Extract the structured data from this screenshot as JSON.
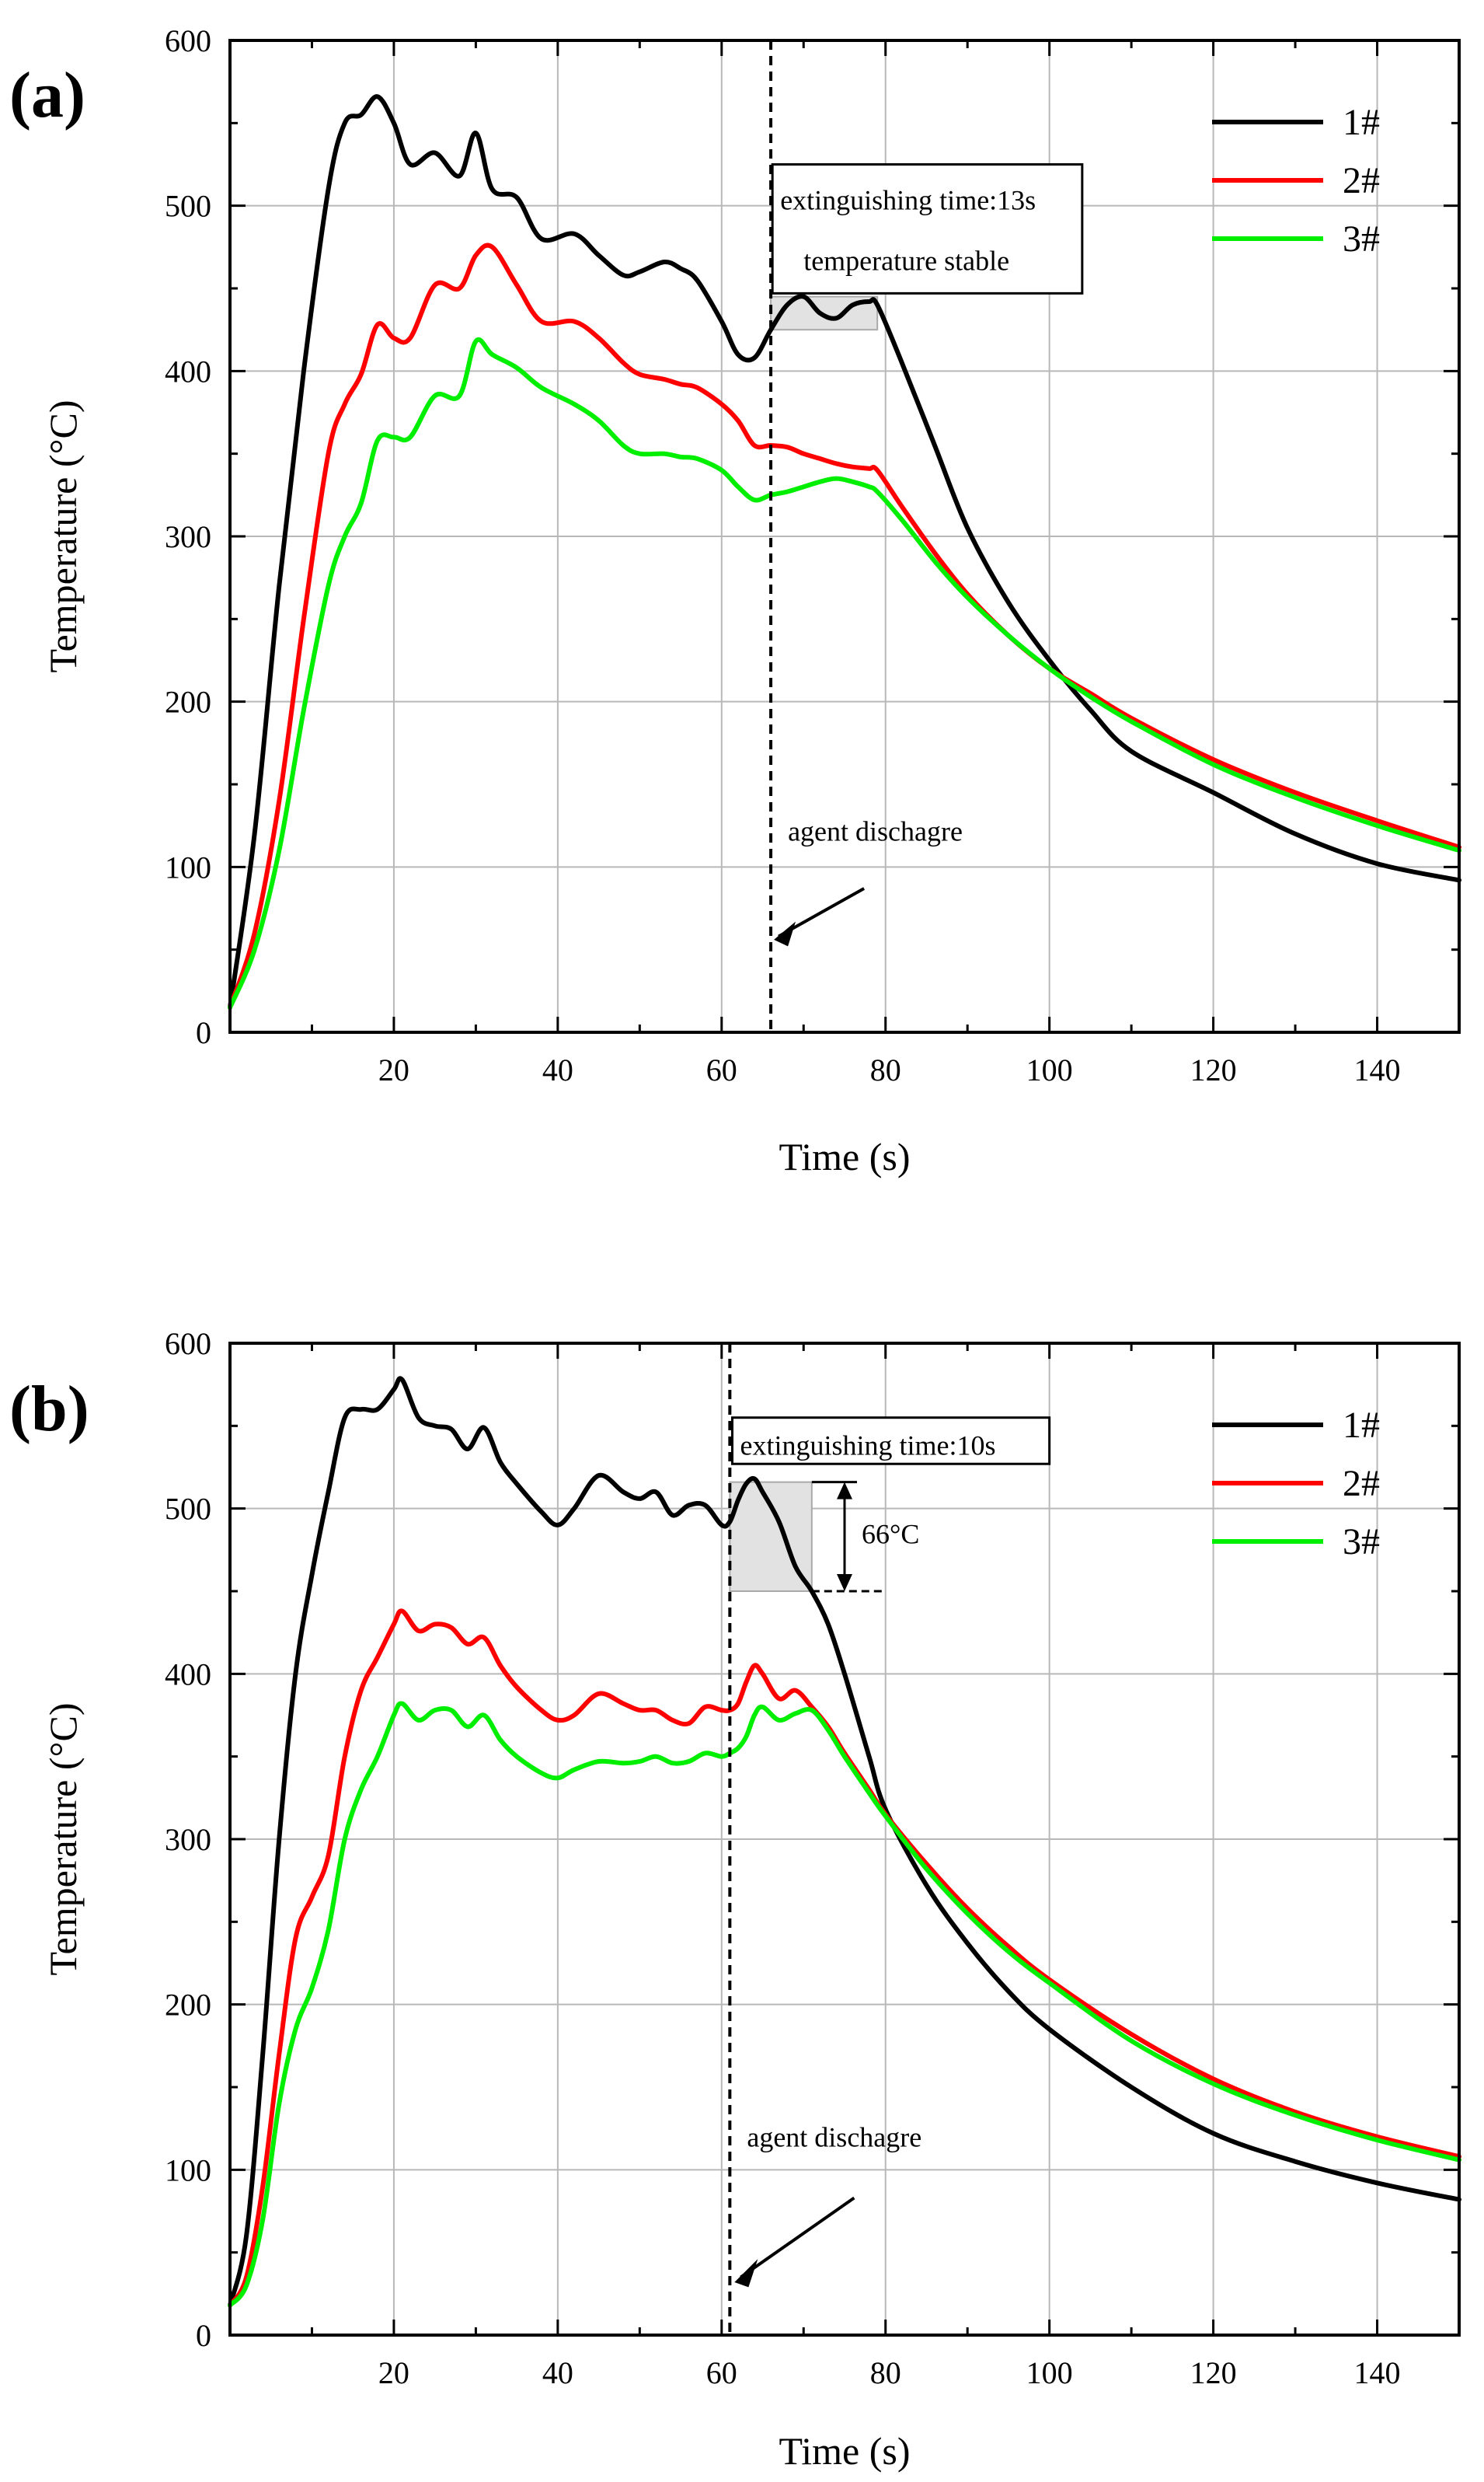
{
  "chart_data": [
    {
      "type": "line",
      "panel_label": "(a)",
      "title": "",
      "xlabel": "Time (s)",
      "ylabel": "Temperature (°C)",
      "xlim": [
        0,
        150
      ],
      "ylim": [
        0,
        600
      ],
      "xticks": [
        20,
        40,
        60,
        80,
        100,
        120,
        140
      ],
      "yticks": [
        0,
        100,
        200,
        300,
        400,
        500,
        600
      ],
      "grid": true,
      "legend_position": "top-right",
      "series": [
        {
          "name": "1#",
          "color": "#000000",
          "x": [
            0,
            3,
            6,
            9,
            12,
            14,
            16,
            18,
            20,
            22,
            25,
            28,
            30,
            32,
            35,
            38,
            42,
            45,
            48,
            50,
            53,
            55,
            57,
            60,
            62,
            64,
            66,
            68,
            70,
            72,
            74,
            76,
            78,
            79,
            82,
            86,
            90,
            95,
            100,
            105,
            110,
            120,
            130,
            140,
            150
          ],
          "y": [
            15,
            120,
            270,
            400,
            510,
            550,
            555,
            566,
            550,
            525,
            532,
            518,
            544,
            510,
            505,
            480,
            483,
            470,
            458,
            460,
            466,
            462,
            455,
            430,
            410,
            408,
            425,
            440,
            445,
            435,
            432,
            440,
            442,
            440,
            405,
            355,
            305,
            260,
            225,
            195,
            170,
            145,
            120,
            102,
            92
          ]
        },
        {
          "name": "2#",
          "color": "#ff0000",
          "x": [
            0,
            3,
            6,
            9,
            12,
            14,
            16,
            18,
            20,
            22,
            25,
            28,
            30,
            32,
            35,
            38,
            42,
            45,
            48,
            50,
            53,
            55,
            57,
            60,
            62,
            64,
            66,
            68,
            70,
            72,
            74,
            76,
            78,
            79,
            82,
            86,
            90,
            95,
            100,
            105,
            110,
            120,
            130,
            140,
            150
          ],
          "y": [
            15,
            60,
            140,
            250,
            350,
            380,
            398,
            428,
            420,
            420,
            452,
            450,
            470,
            475,
            452,
            430,
            430,
            420,
            405,
            398,
            395,
            392,
            390,
            380,
            370,
            355,
            355,
            354,
            350,
            347,
            344,
            342,
            341,
            340,
            318,
            290,
            265,
            240,
            220,
            205,
            190,
            165,
            145,
            128,
            112
          ]
        },
        {
          "name": "3#",
          "color": "#00ee00",
          "x": [
            0,
            3,
            6,
            9,
            12,
            14,
            16,
            18,
            20,
            22,
            25,
            28,
            30,
            32,
            35,
            38,
            42,
            45,
            48,
            50,
            53,
            55,
            57,
            60,
            62,
            64,
            66,
            68,
            70,
            72,
            74,
            76,
            78,
            79,
            82,
            86,
            90,
            95,
            100,
            105,
            110,
            120,
            130,
            140,
            150
          ],
          "y": [
            15,
            50,
            110,
            195,
            270,
            300,
            320,
            358,
            360,
            360,
            385,
            385,
            418,
            410,
            402,
            390,
            380,
            370,
            355,
            350,
            350,
            348,
            347,
            340,
            330,
            322,
            325,
            327,
            330,
            333,
            335,
            333,
            330,
            327,
            310,
            285,
            263,
            240,
            220,
            203,
            188,
            162,
            142,
            125,
            110
          ]
        }
      ],
      "annotations": {
        "discharge_time": 66,
        "discharge_label": "agent dischagre",
        "box_line1": "extinguishing time:13s",
        "box_line2": "temperature stable",
        "shaded_region": {
          "x_start": 66,
          "x_end": 79,
          "y_low": 425,
          "y_high": 445
        }
      }
    },
    {
      "type": "line",
      "panel_label": "(b)",
      "title": "",
      "xlabel": "Time (s)",
      "ylabel": "Temperature (°C)",
      "xlim": [
        0,
        150
      ],
      "ylim": [
        0,
        600
      ],
      "xticks": [
        20,
        40,
        60,
        80,
        100,
        120,
        140
      ],
      "yticks": [
        0,
        100,
        200,
        300,
        400,
        500,
        600
      ],
      "grid": true,
      "legend_position": "top-right",
      "series": [
        {
          "name": "1#",
          "color": "#000000",
          "x": [
            0,
            2,
            4,
            6,
            8,
            10,
            12,
            14,
            16,
            18,
            20,
            21,
            23,
            25,
            27,
            29,
            31,
            33,
            35,
            38,
            40,
            42,
            45,
            48,
            50,
            52,
            54,
            56,
            58,
            60,
            61,
            62,
            63,
            64,
            65,
            67,
            69,
            71,
            73,
            75,
            78,
            80,
            85,
            90,
            95,
            100,
            110,
            120,
            130,
            140,
            150
          ],
          "y": [
            18,
            60,
            170,
            300,
            400,
            460,
            510,
            555,
            560,
            560,
            572,
            578,
            555,
            550,
            548,
            536,
            549,
            528,
            515,
            498,
            490,
            500,
            520,
            510,
            506,
            510,
            496,
            502,
            502,
            490,
            492,
            505,
            515,
            518,
            510,
            492,
            465,
            450,
            430,
            400,
            350,
            318,
            272,
            237,
            208,
            185,
            150,
            122,
            105,
            92,
            82
          ]
        },
        {
          "name": "2#",
          "color": "#ff0000",
          "x": [
            0,
            2,
            4,
            6,
            8,
            10,
            12,
            14,
            16,
            18,
            20,
            21,
            23,
            25,
            27,
            29,
            31,
            33,
            35,
            38,
            40,
            42,
            45,
            48,
            50,
            52,
            54,
            56,
            58,
            60,
            61,
            62,
            63,
            64,
            65,
            67,
            69,
            71,
            73,
            75,
            78,
            80,
            85,
            90,
            95,
            100,
            110,
            120,
            130,
            140,
            150
          ],
          "y": [
            18,
            35,
            90,
            170,
            240,
            265,
            290,
            350,
            390,
            410,
            430,
            438,
            426,
            430,
            428,
            418,
            422,
            405,
            392,
            378,
            372,
            375,
            388,
            382,
            378,
            378,
            372,
            370,
            380,
            378,
            378,
            382,
            395,
            405,
            400,
            385,
            390,
            380,
            368,
            352,
            330,
            315,
            285,
            258,
            235,
            215,
            182,
            155,
            135,
            120,
            108
          ]
        },
        {
          "name": "3#",
          "color": "#00ee00",
          "x": [
            0,
            2,
            4,
            6,
            8,
            10,
            12,
            14,
            16,
            18,
            20,
            21,
            23,
            25,
            27,
            29,
            31,
            33,
            35,
            38,
            40,
            42,
            45,
            48,
            50,
            52,
            54,
            56,
            58,
            60,
            61,
            62,
            63,
            64,
            65,
            67,
            69,
            71,
            73,
            75,
            78,
            80,
            85,
            90,
            95,
            100,
            110,
            120,
            130,
            140,
            150
          ],
          "y": [
            18,
            30,
            70,
            140,
            185,
            210,
            245,
            300,
            330,
            350,
            375,
            382,
            372,
            378,
            378,
            368,
            375,
            360,
            350,
            340,
            337,
            342,
            347,
            346,
            347,
            350,
            346,
            347,
            352,
            350,
            352,
            355,
            362,
            375,
            380,
            372,
            376,
            378,
            366,
            350,
            328,
            314,
            282,
            255,
            232,
            213,
            178,
            152,
            133,
            118,
            106
          ]
        }
      ],
      "annotations": {
        "discharge_time": 61,
        "discharge_label": "agent dischagre",
        "box_line1": "extinguishing time:10s",
        "delta_label": "66°C",
        "shaded_region": {
          "x_start": 61,
          "x_end": 71,
          "y_low": 450,
          "y_high": 516
        },
        "delta_top": 516,
        "delta_bottom": 450,
        "delta_x": 75
      }
    }
  ]
}
